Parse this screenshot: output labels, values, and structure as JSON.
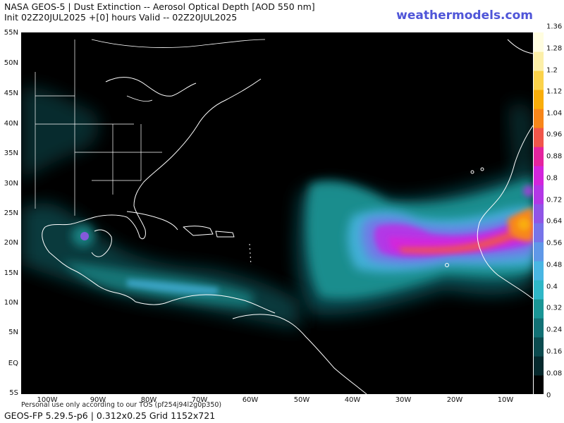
{
  "header": {
    "line1": "NASA GEOS-5 | Dust Extinction -- Aerosol Optical Depth [AOD 550 nm]",
    "line2": "Init 02Z20JUL2025 +[0] hours Valid -- 02Z20JUL2025",
    "brand": "weathermodels.com"
  },
  "axes": {
    "lat_labels": [
      "55N",
      "50N",
      "45N",
      "40N",
      "35N",
      "30N",
      "25N",
      "20N",
      "15N",
      "10N",
      "5N",
      "EQ",
      "5S"
    ],
    "lon_labels": [
      "100W",
      "90W",
      "80W",
      "70W",
      "60W",
      "50W",
      "40W",
      "30W",
      "20W",
      "10W"
    ]
  },
  "colorbar": {
    "ticks": [
      "1.36",
      "1.28",
      "1.2",
      "1.12",
      "1.04",
      "0.96",
      "0.88",
      "0.8",
      "0.72",
      "0.64",
      "0.56",
      "0.48",
      "0.4",
      "0.32",
      "0.24",
      "0.16",
      "0.08",
      "0"
    ],
    "colors": [
      "#000000",
      "#05282c",
      "#0b4a4e",
      "#127074",
      "#1a9595",
      "#2fb7c7",
      "#49b6e3",
      "#5f98e8",
      "#7774e9",
      "#9055e6",
      "#b337e6",
      "#d225dc",
      "#e4249e",
      "#f0564a",
      "#f7861a",
      "#f9ad0a",
      "#fbd24a",
      "#fcefa8",
      "#fffde0"
    ]
  },
  "footer": {
    "tos": "Personal use only according to our TOS (pf254j94l2g0p350)",
    "model": "GEOS-FP 5.29.5-p6 | 0.312x0.25 Grid 1152x721"
  }
}
